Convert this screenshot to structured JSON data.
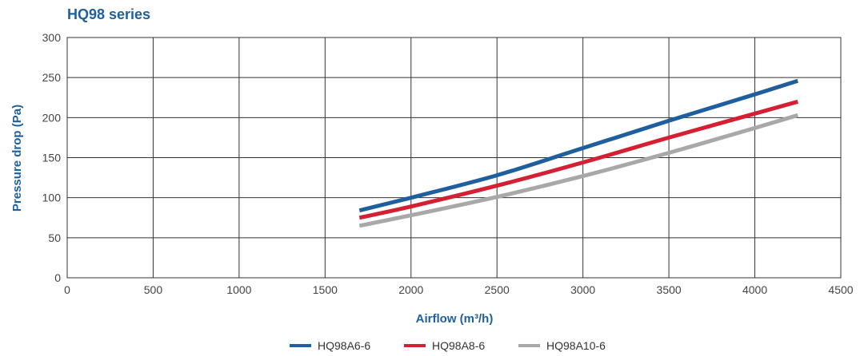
{
  "chart_data": {
    "type": "line",
    "title": "HQ98 series",
    "xlabel": "Airflow (m³/h)",
    "ylabel": "Pressure drop (Pa)",
    "xlim": [
      0,
      4500
    ],
    "ylim": [
      0,
      300
    ],
    "xticks": [
      0,
      500,
      1000,
      1500,
      2000,
      2500,
      3000,
      3500,
      4000,
      4500
    ],
    "yticks": [
      0,
      50,
      100,
      150,
      200,
      250,
      300
    ],
    "grid": true,
    "legend_position": "bottom",
    "title_color": "#1f5f9e",
    "label_color": "#1f5f9e",
    "series": [
      {
        "name": "HQ98A6-6",
        "color": "#1f5f9e",
        "x": [
          1700,
          2000,
          2500,
          3000,
          3500,
          4000,
          4250
        ],
        "y": [
          84,
          100,
          128,
          162,
          196,
          229,
          246
        ]
      },
      {
        "name": "HQ98A8-6",
        "color": "#d42032",
        "x": [
          1700,
          2000,
          2500,
          3000,
          3500,
          4000,
          4250
        ],
        "y": [
          75,
          89,
          115,
          144,
          175,
          205,
          220
        ]
      },
      {
        "name": "HQ98A10-6",
        "color": "#a8a8a8",
        "x": [
          1700,
          2000,
          2500,
          3000,
          3500,
          4000,
          4250
        ],
        "y": [
          65,
          78,
          101,
          127,
          156,
          187,
          203
        ]
      }
    ]
  }
}
